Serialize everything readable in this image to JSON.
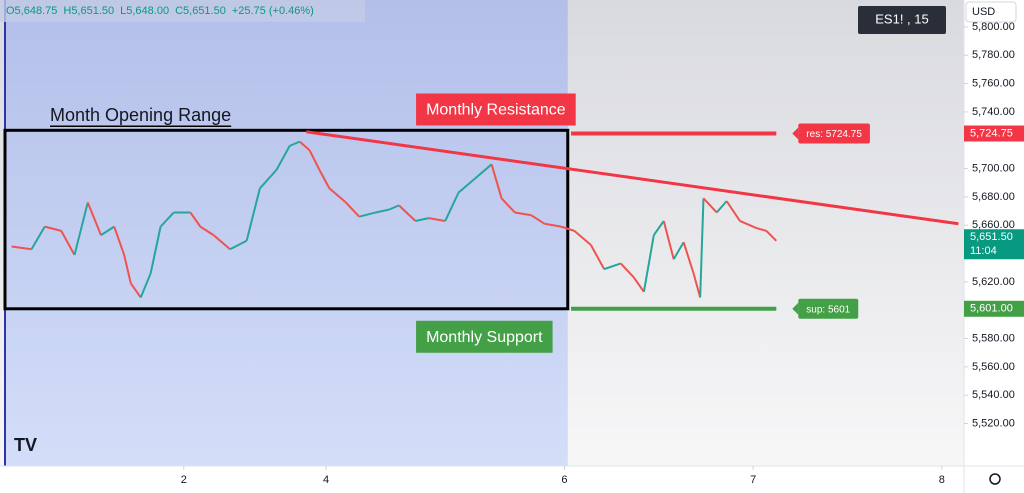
{
  "chart_data": {
    "type": "line",
    "symbol": "ES1! , 15",
    "currency": "USD",
    "header": [
      "O5,648.75",
      "H5,651.50",
      "L5,648.00",
      "C5,651.50",
      "+25.75 (+0.46%)"
    ],
    "x": [
      2,
      8,
      12,
      17,
      21,
      25,
      29,
      33,
      36,
      38,
      41,
      44,
      47,
      51,
      56,
      59,
      63,
      68,
      73,
      77,
      82,
      86,
      89,
      92,
      95,
      98,
      103,
      107,
      112,
      116,
      119,
      124,
      128,
      133,
      137,
      142,
      147,
      150,
      154,
      159,
      163,
      168,
      172,
      177,
      181,
      186,
      190,
      193,
      196,
      199,
      202,
      205,
      208,
      210,
      211,
      215,
      218,
      222,
      227,
      230,
      233
    ],
    "series": [
      {
        "color": "#26a69a",
        "down_color": "#ef5350",
        "values": [
          5645,
          5643,
          5659,
          5656,
          5639,
          5676,
          5653,
          5659,
          5639,
          5619,
          5609,
          5626,
          5659,
          5669,
          5669,
          5659,
          5653,
          5643,
          5649,
          5686,
          5699,
          5716,
          5719,
          5713,
          5699,
          5686,
          5676,
          5666,
          5669,
          5671,
          5674,
          5663,
          5665,
          5663,
          5683,
          5693,
          5703,
          5679,
          5669,
          5667,
          5661,
          5659,
          5656,
          5646,
          5629,
          5633,
          5623,
          5613,
          5653,
          5663,
          5636,
          5648,
          5626,
          5609,
          5679,
          5669,
          5677,
          5663,
          5658,
          5656,
          5649
        ]
      }
    ],
    "xlim": [
      0,
      290
    ],
    "xticks": [
      {
        "value": 54,
        "label": "2"
      },
      {
        "value": 97,
        "label": "4"
      },
      {
        "value": 169,
        "label": "6"
      },
      {
        "value": 226,
        "label": "7"
      },
      {
        "value": 283,
        "label": "8"
      }
    ],
    "ylim": [
      5490,
      5819
    ],
    "yticks": [
      {
        "value": 5520,
        "label": "5,520.00"
      },
      {
        "value": 5540,
        "label": "5,540.00"
      },
      {
        "value": 5560,
        "label": "5,560.00"
      },
      {
        "value": 5580,
        "label": "5,580.00"
      },
      {
        "value": 5620,
        "label": "5,620.00"
      },
      {
        "value": 5660,
        "label": "5,660.00"
      },
      {
        "value": 5680,
        "label": "5,680.00"
      },
      {
        "value": 5700,
        "label": "5,700.00"
      },
      {
        "value": 5740,
        "label": "5,740.00"
      },
      {
        "value": 5760,
        "label": "5,760.00"
      },
      {
        "value": 5780,
        "label": "5,780.00"
      },
      {
        "value": 5800,
        "label": "5,800.00"
      }
    ],
    "range_box": {
      "label": "Month Opening Range",
      "x": [
        0,
        170
      ],
      "y": [
        5601,
        5727
      ]
    },
    "trendline": {
      "x": [
        91,
        288
      ],
      "y": [
        5726,
        5661
      ],
      "color": "#f23645"
    },
    "levels": [
      {
        "title": "Monthly Resistance",
        "tag": "res: 5724.75",
        "value": 5724.75,
        "x": [
          171,
          233
        ],
        "color": "#f23645"
      },
      {
        "title": "Monthly Support",
        "tag": "sup: 5601",
        "value": 5601,
        "x": [
          171,
          233
        ],
        "color": "#43a047"
      }
    ],
    "price_tags": [
      {
        "label": "5,724.75",
        "value": 5724.75,
        "color": "#f23645"
      },
      {
        "label": "5,651.50",
        "sublabel": "11:04",
        "value": 5651.5,
        "color": "#089981"
      },
      {
        "label": "5,601.00",
        "value": 5601,
        "color": "#43a047"
      }
    ]
  }
}
